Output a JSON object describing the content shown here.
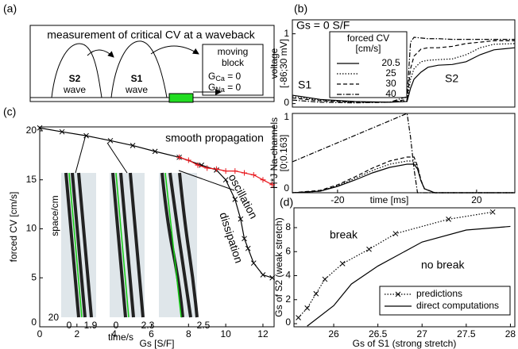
{
  "panel_labels": [
    "(a)",
    "(b)",
    "(c)",
    "(d)"
  ],
  "diagram": {
    "title": "measurement of critical CV at a waveback",
    "waves": [
      {
        "name": "S2",
        "label": "wave"
      },
      {
        "name": "S1",
        "label": "wave"
      }
    ],
    "block": [
      "moving",
      "block"
    ],
    "conductances": [
      {
        "symbol": "G",
        "sub": "Ca",
        "rest": " = 0"
      },
      {
        "symbol": "G",
        "sub": "Na",
        "rest": " = 0"
      }
    ]
  },
  "chart_data": [
    {
      "type": "line",
      "ylabel": [
        "voltage",
        "[-86;30 mV]"
      ],
      "xlim": [
        -33,
        31
      ],
      "ylim": [
        -0.05,
        1.2
      ],
      "yticks": [
        0,
        1
      ],
      "legend_title": [
        "forced CV",
        "[cm/s]"
      ],
      "annotations": [
        "Gs = 0 S/F",
        "S1",
        "S2"
      ],
      "series": [
        {
          "name": "20.5",
          "color": "#000000",
          "style": "solid",
          "x": [
            -33,
            -25,
            -15,
            -5,
            0,
            1,
            2,
            4,
            6,
            9,
            13,
            17,
            21,
            25,
            31
          ],
          "values": [
            0.12,
            0.06,
            0.03,
            0.02,
            0.03,
            0.22,
            0.35,
            0.45,
            0.52,
            0.55,
            0.56,
            0.6,
            0.7,
            0.77,
            0.8
          ]
        },
        {
          "name": "25",
          "color": "#000000",
          "style": "dotted",
          "x": [
            -33,
            -25,
            -15,
            -5,
            0,
            1,
            2,
            4,
            6,
            9,
            13,
            17,
            21,
            25,
            31
          ],
          "values": [
            0.1,
            0.05,
            0.02,
            0.02,
            0.04,
            0.35,
            0.5,
            0.6,
            0.62,
            0.63,
            0.64,
            0.7,
            0.8,
            0.85,
            0.86
          ]
        },
        {
          "name": "30",
          "color": "#000000",
          "style": "dashed",
          "x": [
            -33,
            -25,
            -15,
            -5,
            0,
            1,
            2,
            4,
            6,
            9,
            13,
            17,
            21,
            25,
            31
          ],
          "values": [
            0.08,
            0.04,
            0.02,
            0.02,
            0.06,
            0.5,
            0.68,
            0.78,
            0.8,
            0.8,
            0.82,
            0.86,
            0.88,
            0.9,
            0.9
          ]
        },
        {
          "name": "40",
          "color": "#000000",
          "style": "dashdot",
          "x": [
            -33,
            -25,
            -15,
            -5,
            0,
            1,
            2,
            4,
            6,
            9,
            13,
            17,
            21,
            25,
            31
          ],
          "values": [
            0.05,
            0.02,
            0.01,
            0.02,
            0.1,
            0.88,
            0.95,
            0.94,
            0.93,
            0.93,
            0.92,
            0.92,
            0.92,
            0.92,
            0.92
          ]
        }
      ]
    },
    {
      "type": "line",
      "ylabel": [
        "H*J Na-channels",
        "[0;0.163]"
      ],
      "xlabel": "time [ms]",
      "xlim": [
        -33,
        31
      ],
      "ylim": [
        0,
        1
      ],
      "yticks": [
        0,
        1
      ],
      "xticks": [
        -20,
        20
      ],
      "series": [
        {
          "name": "20.5",
          "color": "#000000",
          "style": "solid",
          "x": [
            -33,
            -25,
            -20,
            -15,
            -10,
            -5,
            0,
            2,
            3,
            4,
            5,
            8,
            31
          ],
          "values": [
            0,
            0.02,
            0.08,
            0.16,
            0.25,
            0.32,
            0.36,
            0.36,
            0.3,
            0.15,
            0.05,
            0,
            0
          ]
        },
        {
          "name": "25",
          "color": "#000000",
          "style": "dotted",
          "x": [
            -33,
            -25,
            -20,
            -15,
            -10,
            -5,
            0,
            2,
            3,
            4,
            5,
            8,
            31
          ],
          "values": [
            0,
            0.02,
            0.09,
            0.18,
            0.28,
            0.36,
            0.4,
            0.4,
            0.32,
            0.15,
            0.05,
            0,
            0
          ]
        },
        {
          "name": "30",
          "color": "#000000",
          "style": "dashed",
          "x": [
            -33,
            -25,
            -20,
            -15,
            -10,
            -5,
            0,
            2,
            3,
            4,
            5,
            8,
            31
          ],
          "values": [
            0,
            0.03,
            0.1,
            0.2,
            0.31,
            0.4,
            0.45,
            0.45,
            0.34,
            0.16,
            0.05,
            0,
            0
          ]
        },
        {
          "name": "40",
          "color": "#000000",
          "style": "dashdot",
          "x": [
            -33,
            0,
            1,
            2,
            3,
            31
          ],
          "values": [
            0.39,
            1.0,
            0.7,
            0.3,
            0,
            0
          ]
        }
      ]
    },
    {
      "type": "line",
      "xlabel": "Gs [S/F]",
      "ylabel": [
        "forced CV [cm/s]"
      ],
      "xlim": [
        0,
        12.6
      ],
      "ylim": [
        0,
        20.4
      ],
      "xticks": [
        0,
        2,
        4,
        6,
        8,
        10,
        12
      ],
      "yticks": [
        0,
        5,
        10,
        15,
        20
      ],
      "annotations": [
        "smooth propagation",
        "oscillation",
        "dissipation"
      ],
      "insets": {
        "ylabel": "space/cm",
        "ytick": 20,
        "xlabel": "time/s",
        "xticks": [
          [
            0,
            1.9
          ],
          [
            0,
            2.3
          ],
          [
            2.5
          ]
        ]
      },
      "series": [
        {
          "color": "#000000",
          "style": "solid",
          "marker": "x",
          "x": [
            0,
            1.2,
            2.5,
            3.8,
            5,
            6.2,
            7.5,
            8.7,
            9.5,
            10,
            10.5,
            10.8,
            11,
            11.2,
            11.5,
            12,
            12.5
          ],
          "values": [
            20.3,
            19.9,
            19.5,
            19,
            18.5,
            17.9,
            17.3,
            16.5,
            16,
            15,
            13,
            11,
            9,
            8,
            6.5,
            5.3,
            5
          ]
        },
        {
          "color": "#e8141a",
          "style": "solid",
          "marker": "+",
          "x": [
            7.5,
            8,
            8.5,
            9,
            9.5,
            10,
            10.5,
            11,
            11.5,
            12,
            12.5
          ],
          "values": [
            17.3,
            17,
            16.5,
            16.2,
            16.1,
            15.9,
            15.9,
            15.7,
            15.5,
            15,
            14.5
          ]
        }
      ]
    },
    {
      "type": "line",
      "xlabel": "Gs of S1 (strong stretch)",
      "ylabel": [
        "Gs of S2 (weak stretch)"
      ],
      "xlim": [
        25.55,
        28.05
      ],
      "ylim": [
        -0.26,
        9.65
      ],
      "xticks": [
        26,
        26.5,
        27,
        27.5,
        28
      ],
      "yticks": [
        0,
        2,
        4,
        6,
        8
      ],
      "annotations": [
        "break",
        "no break"
      ],
      "series": [
        {
          "name": "predictions",
          "color": "#000000",
          "style": "dotted",
          "marker": "x",
          "x": [
            25.6,
            25.7,
            25.8,
            25.9,
            26.1,
            26.4,
            26.7,
            27.3,
            27.8
          ],
          "values": [
            0.5,
            1.3,
            2.5,
            3.7,
            5,
            6.2,
            7.5,
            8.7,
            9.3
          ]
        },
        {
          "name": "direct computations",
          "color": "#000000",
          "style": "solid",
          "x": [
            25.7,
            26,
            26.2,
            26.5,
            27,
            27.5,
            28
          ],
          "values": [
            -0.2,
            1.5,
            3.3,
            4.8,
            6.8,
            7.8,
            8.1
          ]
        }
      ]
    }
  ]
}
